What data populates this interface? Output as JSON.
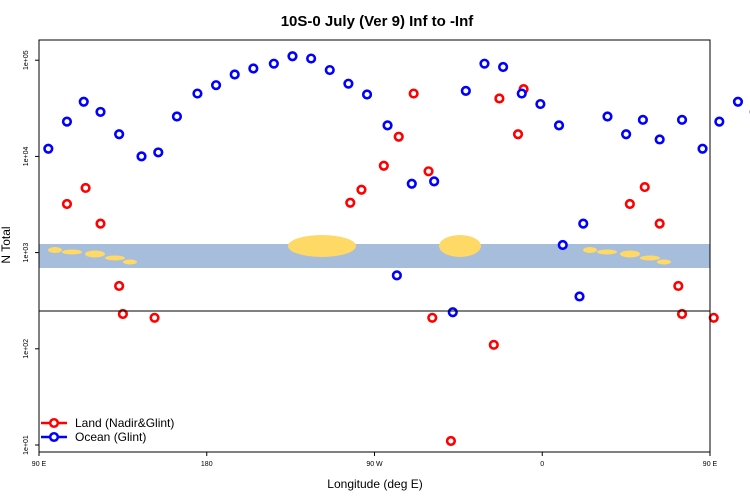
{
  "chart_data": {
    "type": "scatter",
    "title": "10S-0 July (Ver 9)   Inf to -Inf",
    "xlabel": "Longitude (deg E)",
    "ylabel": "N Total",
    "x_scale": "longitude",
    "y_scale": "log",
    "xlim": [
      90,
      450
    ],
    "ylim": [
      8,
      150000
    ],
    "x_ticks": [
      {
        "value": 90,
        "label": "90 E"
      },
      {
        "value": 180,
        "label": "180"
      },
      {
        "value": 270,
        "label": "90 W"
      },
      {
        "value": 360,
        "label": "0"
      },
      {
        "value": 450,
        "label": "90 E"
      }
    ],
    "y_ticks": [
      {
        "value": 10,
        "label": "1e+01"
      },
      {
        "value": 100,
        "label": "1e+02"
      },
      {
        "value": 1000,
        "label": "1e+03"
      },
      {
        "value": 10000,
        "label": "1e+04"
      },
      {
        "value": 100000,
        "label": "1e+05"
      }
    ],
    "grid": false,
    "legend_position": "bottom-left",
    "series": [
      {
        "name": "Land (Nadir&Glint)",
        "color": "#ff0000",
        "points": [
          [
            105,
            3200
          ],
          [
            115,
            4700
          ],
          [
            123,
            2000
          ],
          [
            133,
            450
          ],
          [
            135,
            230
          ],
          [
            152,
            210
          ],
          [
            334,
            110
          ],
          [
            257,
            3300
          ],
          [
            263,
            4500
          ],
          [
            275,
            8000
          ],
          [
            283,
            16000
          ],
          [
            291,
            45000
          ],
          [
            299,
            7000
          ],
          [
            301,
            210
          ],
          [
            311,
            11
          ],
          [
            337,
            40000
          ],
          [
            347,
            17000
          ],
          [
            350,
            50000
          ],
          [
            407,
            3200
          ],
          [
            415,
            4800
          ],
          [
            423,
            2000
          ],
          [
            433,
            450
          ],
          [
            435,
            230
          ],
          [
            452,
            210
          ]
        ]
      },
      {
        "name": "Ocean (Glint)",
        "color": "#0000ff",
        "points": [
          [
            95,
            12000
          ],
          [
            105,
            23000
          ],
          [
            114,
            37000
          ],
          [
            123,
            29000
          ],
          [
            133,
            17000
          ],
          [
            145,
            10000
          ],
          [
            154,
            11000
          ],
          [
            164,
            26000
          ],
          [
            175,
            45000
          ],
          [
            185,
            55000
          ],
          [
            195,
            71000
          ],
          [
            205,
            82000
          ],
          [
            216,
            92000
          ],
          [
            226,
            110000
          ],
          [
            236,
            104000
          ],
          [
            246,
            79000
          ],
          [
            256,
            57000
          ],
          [
            266,
            44000
          ],
          [
            277,
            21000
          ],
          [
            282,
            580
          ],
          [
            290,
            5200
          ],
          [
            302,
            5500
          ],
          [
            312,
            240
          ],
          [
            319,
            48000
          ],
          [
            329,
            92000
          ],
          [
            339,
            85000
          ],
          [
            349,
            45000
          ],
          [
            359,
            35000
          ],
          [
            369,
            21000
          ],
          [
            371,
            1200
          ],
          [
            380,
            350
          ],
          [
            382,
            2000
          ],
          [
            395,
            26000
          ],
          [
            405,
            17000
          ],
          [
            414,
            24000
          ],
          [
            423,
            15000
          ],
          [
            435,
            24000
          ],
          [
            446,
            12000
          ],
          [
            455,
            23000
          ],
          [
            465,
            37000
          ],
          [
            474,
            29000
          ]
        ]
      }
    ]
  }
}
